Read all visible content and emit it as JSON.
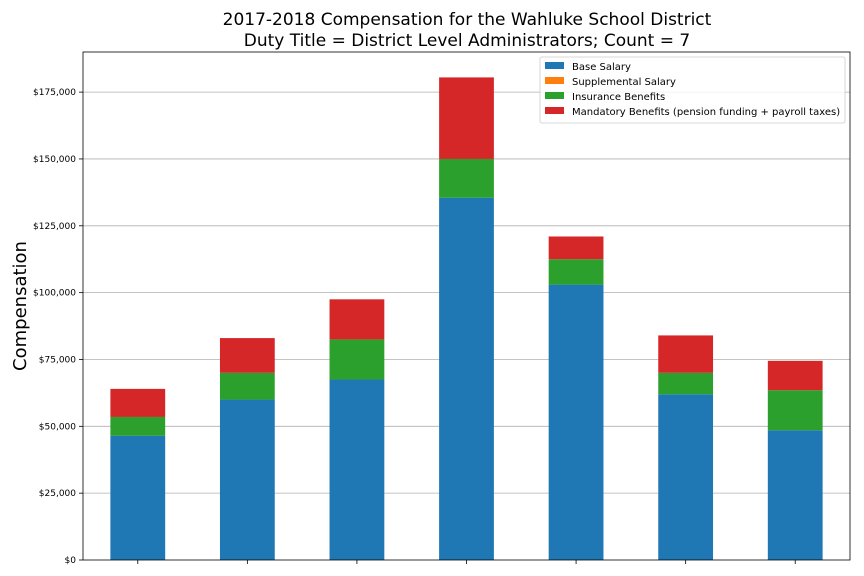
{
  "chart_data": {
    "type": "bar",
    "stacked": true,
    "title": "2017-2018 Compensation for the Wahluke School District",
    "subtitle": "Duty Title = District Level Administrators; Count = 7",
    "xlabel": "",
    "ylabel": "Compensation",
    "ylim": [
      0,
      190000
    ],
    "yticks": [
      0,
      25000,
      50000,
      75000,
      100000,
      125000,
      150000,
      175000
    ],
    "ytick_labels": [
      "$0",
      "$25,000",
      "$50,000",
      "$75,000",
      "$100,000",
      "$125,000",
      "$150,000",
      "$175,000"
    ],
    "grid": "horizontal",
    "legend_position": "top-right",
    "categories": [
      "",
      "",
      "",
      "",
      "",
      "",
      ""
    ],
    "series": [
      {
        "name": "Base Salary",
        "color": "#1f77b4",
        "values": [
          46500,
          60000,
          67500,
          135500,
          103000,
          62000,
          48500
        ]
      },
      {
        "name": "Supplemental Salary",
        "color": "#ff7f0e",
        "values": [
          0,
          0,
          0,
          0,
          0,
          0,
          0
        ]
      },
      {
        "name": "Insurance Benefits",
        "color": "#2ca02c",
        "values": [
          7000,
          10000,
          15000,
          14500,
          9500,
          8000,
          15000
        ]
      },
      {
        "name": "Mandatory Benefits (pension funding + payroll taxes)",
        "color": "#d62728",
        "values": [
          10500,
          13000,
          15000,
          30500,
          8500,
          14000,
          11000
        ]
      }
    ]
  }
}
